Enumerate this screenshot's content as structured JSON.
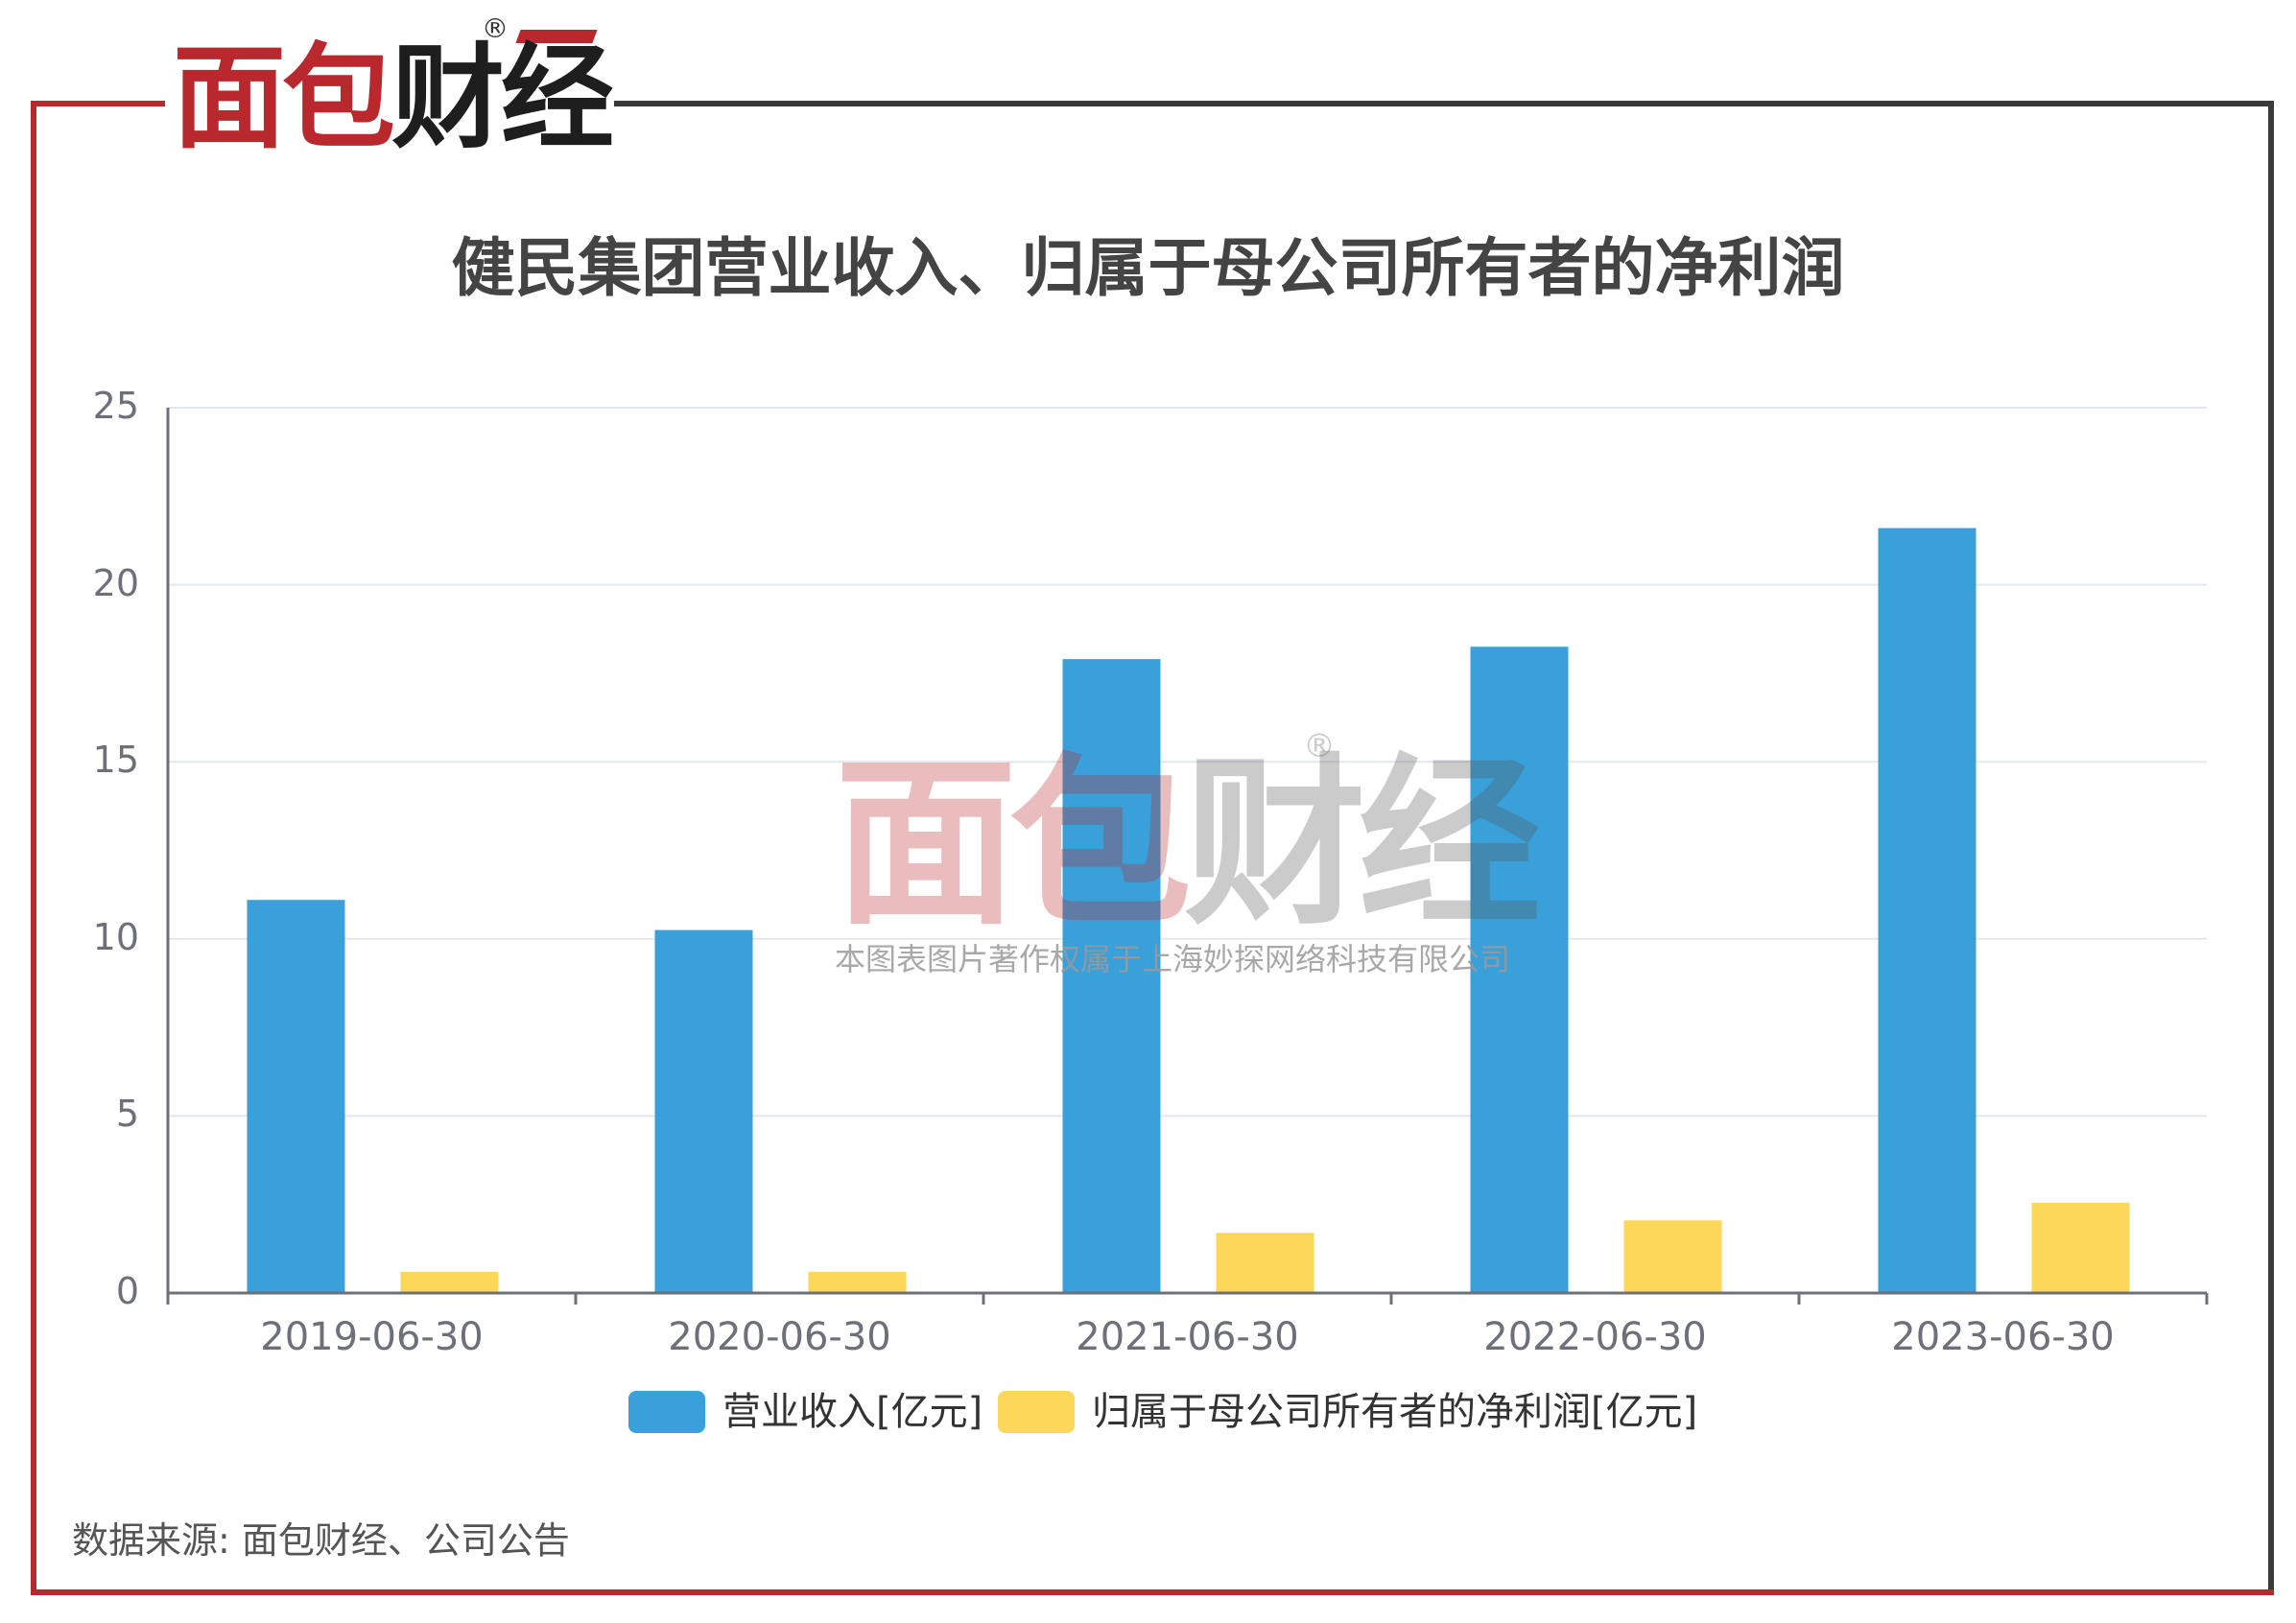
{
  "brand": {
    "logo_part1": "面包",
    "logo_part2": "财经",
    "registered_mark": "®"
  },
  "watermark": {
    "logo_part1": "面包",
    "logo_part2": "财经",
    "registered_mark": "®",
    "copyright": "本图表图片著作权属于上海妙探网络科技有限公司"
  },
  "colors": {
    "frame_red": "#b8282c",
    "frame_dark": "#3a3a3a",
    "revenue": "#3aa0da",
    "net_profit": "#fdd75a"
  },
  "chart_data": {
    "type": "bar",
    "title": "健民集团营业收入、归属于母公司所有者的净利润",
    "categories": [
      "2019-06-30",
      "2020-06-30",
      "2021-06-30",
      "2022-06-30",
      "2023-06-30"
    ],
    "series": [
      {
        "name": "营业收入[亿元]",
        "values": [
          11.1,
          10.25,
          17.9,
          18.25,
          21.6
        ],
        "color": "#3aa0da"
      },
      {
        "name": "归属于母公司所有者的净利润[亿元]",
        "values": [
          0.6,
          0.6,
          1.7,
          2.05,
          2.55
        ],
        "color": "#fdd75a"
      }
    ],
    "yticks": [
      "0",
      "5",
      "10",
      "15",
      "20",
      "25"
    ],
    "ylim": [
      0,
      25
    ],
    "grid": true,
    "legend_position": "bottom"
  },
  "source_note": "数据来源: 面包财经、公司公告"
}
